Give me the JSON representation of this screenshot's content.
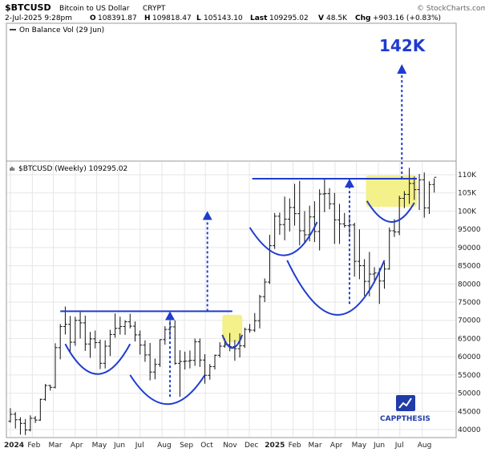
{
  "header": {
    "symbol": "$BTCUSD",
    "name": "Bitcoin to US Dollar",
    "exchange": "CRYPT",
    "watermark": "© StockCharts.com",
    "date_line": "2-Jul-2025 9:28pm",
    "open_label": "O",
    "open": "108391.87",
    "high_label": "H",
    "high": "109818.47",
    "low_label": "L",
    "low": "105143.10",
    "last_label": "Last",
    "last": "109295.02",
    "volume_label": "V",
    "volume": "48.5K",
    "change_label": "Chg",
    "change": "+903.16 (+0.83%)"
  },
  "upper_panel": {
    "legend": "On Balance Vol (29 Jun)"
  },
  "price_panel": {
    "legend": "$BTCUSD (Weekly) 109295.02"
  },
  "annotations": {
    "target_label": "142K",
    "brand": "CAPPTHESIS"
  },
  "colors": {
    "bars": "#111111",
    "annotation": "#1f3ccf",
    "highlight": "#f4f08a",
    "grid": "#e6e6e6"
  },
  "chart_data": {
    "type": "ohlc",
    "title": "$BTCUSD (Weekly) 109295.02",
    "ylim": [
      39000,
      112500
    ],
    "y_ticks": [
      40000,
      45000,
      50000,
      55000,
      60000,
      65000,
      70000,
      75000,
      80000,
      85000,
      90000,
      95000,
      100000,
      105000,
      110000
    ],
    "y_tick_labels": [
      "40000",
      "45000",
      "50000",
      "55000",
      "60000",
      "65000",
      "70000",
      "75000",
      "80000",
      "85000",
      "90000",
      "95000",
      "100K",
      "105K",
      "110K"
    ],
    "x_tick_labels": [
      "2024",
      "Feb",
      "Mar",
      "Apr",
      "May",
      "Jun",
      "Jul",
      "Aug",
      "Sep",
      "Oct",
      "Nov",
      "Dec",
      "2025",
      "Feb",
      "Mar",
      "Apr",
      "May",
      "Jun",
      "Jul",
      "Aug"
    ],
    "x_tick_weeks": [
      0,
      4.4,
      8.6,
      13,
      17.3,
      21.7,
      26,
      30.4,
      34.9,
      39.1,
      43.6,
      47.9,
      52.3,
      56.7,
      60.7,
      65.1,
      69.4,
      73.8,
      78.1,
      82.6
    ],
    "series": [
      {
        "values": [
          [
            42300,
            45900,
            41900,
            44200
          ],
          [
            44200,
            44800,
            40300,
            42700
          ],
          [
            42700,
            43400,
            38600,
            41700
          ],
          [
            41700,
            42900,
            38500,
            39900
          ],
          [
            39900,
            43900,
            39500,
            43100
          ],
          [
            43100,
            43700,
            41800,
            42600
          ],
          [
            42600,
            48500,
            42400,
            48300
          ],
          [
            48300,
            52500,
            47900,
            52100
          ],
          [
            52100,
            52300,
            50700,
            51600
          ],
          [
            51600,
            63700,
            51300,
            62500
          ],
          [
            62500,
            69000,
            59300,
            68300
          ],
          [
            68300,
            73800,
            66100,
            68900
          ],
          [
            68900,
            71200,
            61000,
            64000
          ],
          [
            64000,
            71000,
            63000,
            70000
          ],
          [
            70000,
            72300,
            65000,
            69300
          ],
          [
            69300,
            71300,
            61600,
            63500
          ],
          [
            63500,
            66800,
            59700,
            64900
          ],
          [
            64900,
            67200,
            62300,
            63900
          ],
          [
            63900,
            64700,
            56600,
            58200
          ],
          [
            58200,
            64500,
            56800,
            62900
          ],
          [
            62900,
            67400,
            60200,
            66100
          ],
          [
            66100,
            71900,
            65200,
            67800
          ],
          [
            67800,
            71000,
            66100,
            68300
          ],
          [
            68300,
            70000,
            66000,
            69600
          ],
          [
            69600,
            71800,
            67800,
            68400
          ],
          [
            68400,
            69700,
            64200,
            66000
          ],
          [
            66000,
            67200,
            60600,
            63200
          ],
          [
            63200,
            64500,
            58600,
            60500
          ],
          [
            60500,
            63800,
            53500,
            55800
          ],
          [
            55800,
            59500,
            53800,
            57900
          ],
          [
            57900,
            64800,
            57200,
            64700
          ],
          [
            64700,
            68400,
            63300,
            67500
          ],
          [
            67500,
            70000,
            65000,
            68200
          ],
          [
            68200,
            70000,
            57800,
            58200
          ],
          [
            58200,
            61800,
            49000,
            58700
          ],
          [
            58700,
            61400,
            56500,
            58800
          ],
          [
            58800,
            61700,
            56800,
            59000
          ],
          [
            59000,
            65000,
            57500,
            64100
          ],
          [
            64100,
            65000,
            57200,
            59100
          ],
          [
            59100,
            60700,
            52600,
            54900
          ],
          [
            54900,
            58000,
            53700,
            57300
          ],
          [
            57300,
            60600,
            56500,
            60400
          ],
          [
            60400,
            64000,
            59800,
            62900
          ],
          [
            62900,
            65000,
            62500,
            63300
          ],
          [
            63300,
            66500,
            61500,
            62800
          ],
          [
            62800,
            64600,
            58900,
            62200
          ],
          [
            62200,
            66400,
            59800,
            63000
          ],
          [
            63000,
            68000,
            62400,
            67500
          ],
          [
            67500,
            69000,
            66600,
            67300
          ],
          [
            67300,
            72000,
            66800,
            69900
          ],
          [
            69900,
            77000,
            67800,
            76500
          ],
          [
            76500,
            81500,
            75000,
            80500
          ],
          [
            80500,
            93500,
            80000,
            90500
          ],
          [
            90500,
            99500,
            89600,
            98600
          ],
          [
            98600,
            99600,
            93500,
            96300
          ],
          [
            96300,
            104000,
            92000,
            97800
          ],
          [
            97800,
            103500,
            94400,
            101000
          ],
          [
            101000,
            107500,
            96000,
            99300
          ],
          [
            99300,
            108300,
            90600,
            94600
          ],
          [
            94600,
            100000,
            91300,
            93500
          ],
          [
            93500,
            101500,
            91700,
            98400
          ],
          [
            98400,
            102700,
            91500,
            94400
          ],
          [
            94400,
            106000,
            89200,
            104700
          ],
          [
            104700,
            109000,
            99700,
            104800
          ],
          [
            104800,
            106300,
            100500,
            102000
          ],
          [
            102000,
            105000,
            91000,
            97600
          ],
          [
            97600,
            102000,
            91000,
            96500
          ],
          [
            96500,
            99500,
            95500,
            96000
          ],
          [
            96000,
            98500,
            92900,
            96200
          ],
          [
            96200,
            96800,
            82000,
            86200
          ],
          [
            86200,
            95000,
            81300,
            85000
          ],
          [
            85000,
            86800,
            76700,
            80700
          ],
          [
            80700,
            88800,
            76600,
            82700
          ],
          [
            82700,
            84600,
            80200,
            83000
          ],
          [
            83000,
            84400,
            74500,
            80800
          ],
          [
            80800,
            85900,
            78700,
            84100
          ],
          [
            84100,
            95500,
            83900,
            94600
          ],
          [
            94600,
            97800,
            92900,
            94300
          ],
          [
            94300,
            104200,
            93400,
            103500
          ],
          [
            103500,
            105500,
            100800,
            104600
          ],
          [
            104600,
            111900,
            102000,
            107600
          ],
          [
            107600,
            109500,
            103100,
            105900
          ],
          [
            105900,
            110200,
            100300,
            108600
          ],
          [
            108600,
            110600,
            98200,
            100900
          ],
          [
            100900,
            108200,
            99200,
            107300
          ],
          [
            107300,
            109000,
            105100,
            109295
          ]
        ]
      }
    ],
    "analysis": {
      "target_price": 142000,
      "resistance_2024": 72500,
      "resistance_2025": 108900,
      "pattern_2024": "cup and handle (inverse head & shoulders base)",
      "pattern_2025": "cup and handle (inverse head & shoulders base)",
      "measured_move_2024_target": 100000
    },
    "grid": true,
    "legend_position": "top-left"
  }
}
